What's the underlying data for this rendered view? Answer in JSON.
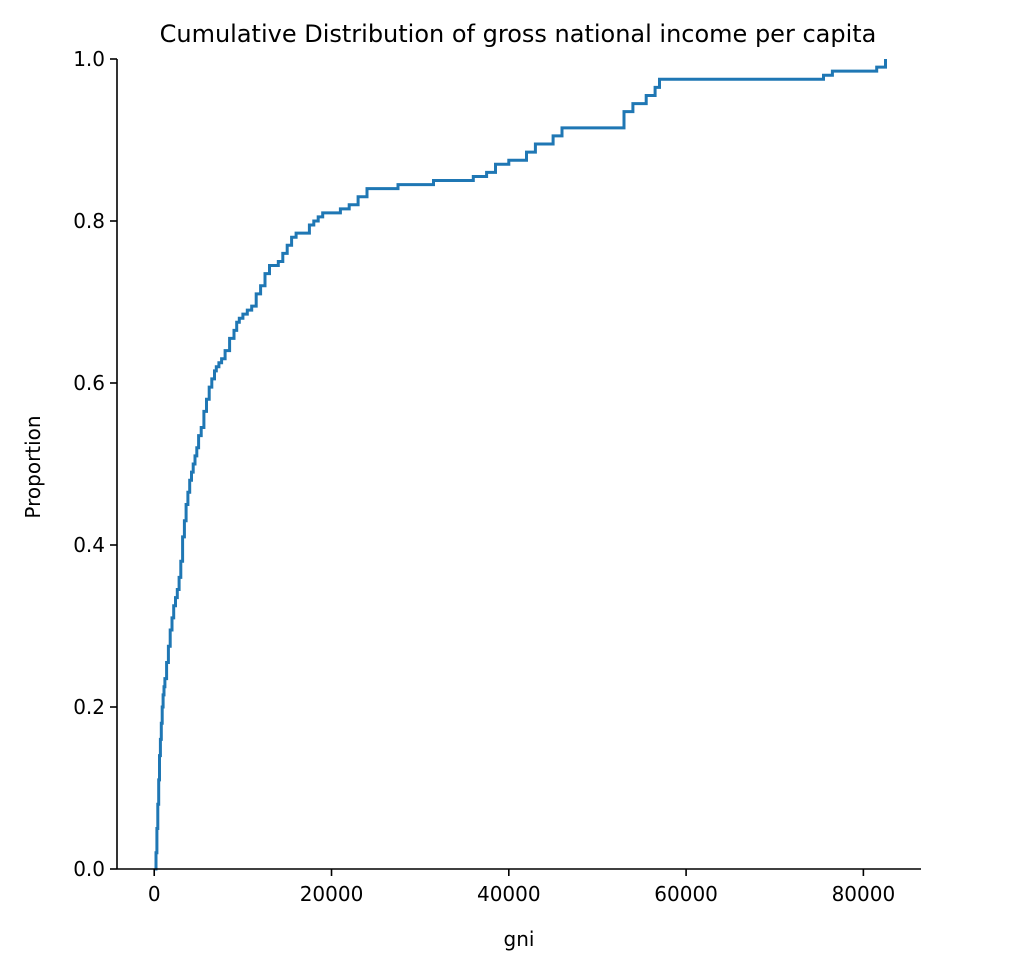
{
  "chart_data": {
    "type": "line",
    "subtype": "ecdf-step",
    "title": "Cumulative Distribution of gross national income per capita",
    "xlabel": "gni",
    "ylabel": "Proportion",
    "xlim": [
      -4200,
      86500
    ],
    "ylim": [
      0,
      1
    ],
    "xticks": [
      0,
      20000,
      40000,
      60000,
      80000
    ],
    "xtick_labels": [
      "0",
      "20000",
      "40000",
      "60000",
      "80000"
    ],
    "yticks": [
      0.0,
      0.2,
      0.4,
      0.6,
      0.8,
      1.0
    ],
    "ytick_labels": [
      "0.0",
      "0.2",
      "0.4",
      "0.6",
      "0.8",
      "1.0"
    ],
    "grid": false,
    "spines": [
      "left",
      "bottom"
    ],
    "series": [
      {
        "color": "#1f77b4",
        "x": [
          100,
          200,
          300,
          400,
          500,
          600,
          700,
          800,
          900,
          1000,
          1100,
          1200,
          1400,
          1600,
          1800,
          2000,
          2200,
          2400,
          2600,
          2800,
          3000,
          3200,
          3400,
          3600,
          3800,
          4000,
          4200,
          4400,
          4600,
          4800,
          5000,
          5300,
          5600,
          5900,
          6200,
          6500,
          6800,
          7000,
          7300,
          7600,
          8000,
          8500,
          9000,
          9300,
          9600,
          10000,
          10500,
          11000,
          11500,
          12000,
          12500,
          13000,
          14000,
          14500,
          15000,
          15500,
          16000,
          17500,
          18000,
          18500,
          19000,
          21000,
          22000,
          23000,
          24000,
          27500,
          31500,
          36000,
          37500,
          38500,
          40000,
          42000,
          43000,
          45000,
          46000,
          53000,
          54000,
          55500,
          56500,
          57000,
          75500,
          76500,
          81500,
          82500
        ],
        "y": [
          0.0,
          0.02,
          0.05,
          0.08,
          0.11,
          0.14,
          0.16,
          0.18,
          0.2,
          0.215,
          0.225,
          0.235,
          0.255,
          0.275,
          0.295,
          0.31,
          0.325,
          0.335,
          0.345,
          0.36,
          0.38,
          0.41,
          0.43,
          0.45,
          0.465,
          0.48,
          0.49,
          0.5,
          0.51,
          0.52,
          0.535,
          0.545,
          0.565,
          0.58,
          0.595,
          0.605,
          0.615,
          0.62,
          0.625,
          0.63,
          0.64,
          0.655,
          0.665,
          0.675,
          0.68,
          0.685,
          0.69,
          0.695,
          0.71,
          0.72,
          0.735,
          0.745,
          0.75,
          0.76,
          0.77,
          0.78,
          0.785,
          0.795,
          0.8,
          0.805,
          0.81,
          0.815,
          0.82,
          0.83,
          0.84,
          0.845,
          0.85,
          0.855,
          0.86,
          0.87,
          0.875,
          0.885,
          0.895,
          0.905,
          0.915,
          0.935,
          0.945,
          0.955,
          0.965,
          0.975,
          0.98,
          0.985,
          0.99,
          1.0
        ]
      }
    ]
  }
}
